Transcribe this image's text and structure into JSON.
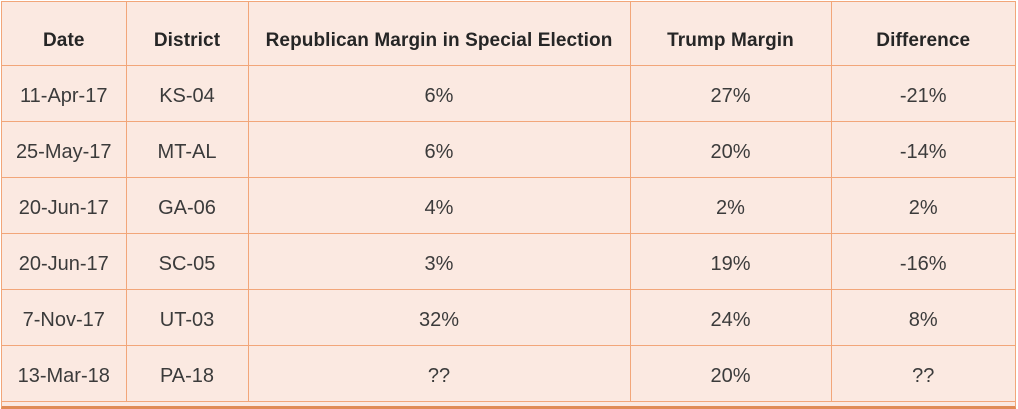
{
  "colors": {
    "cell_bg": "#fbe9e1",
    "border": "#f2a679",
    "border_dark": "#e08b55",
    "text": "#3b3b3b",
    "header_text": "#262626"
  },
  "table": {
    "headers": {
      "date": "Date",
      "district": "District",
      "rep_margin": "Republican Margin in Special Election",
      "trump_margin": "Trump Margin",
      "difference": "Difference"
    },
    "rows": [
      {
        "date": "11-Apr-17",
        "district": "KS-04",
        "rep_margin": "6%",
        "trump_margin": "27%",
        "difference": "-21%"
      },
      {
        "date": "25-May-17",
        "district": "MT-AL",
        "rep_margin": "6%",
        "trump_margin": "20%",
        "difference": "-14%"
      },
      {
        "date": "20-Jun-17",
        "district": "GA-06",
        "rep_margin": "4%",
        "trump_margin": "2%",
        "difference": "2%"
      },
      {
        "date": "20-Jun-17",
        "district": "SC-05",
        "rep_margin": "3%",
        "trump_margin": "19%",
        "difference": "-16%"
      },
      {
        "date": "7-Nov-17",
        "district": "UT-03",
        "rep_margin": "32%",
        "trump_margin": "24%",
        "difference": "8%"
      },
      {
        "date": "13-Mar-18",
        "district": "PA-18",
        "rep_margin": "??",
        "trump_margin": "20%",
        "difference": "??"
      }
    ]
  },
  "chart_data": {
    "type": "table",
    "columns": [
      "Date",
      "District",
      "Republican Margin in Special Election",
      "Trump Margin",
      "Difference"
    ],
    "rows": [
      [
        "11-Apr-17",
        "KS-04",
        "6%",
        "27%",
        "-21%"
      ],
      [
        "25-May-17",
        "MT-AL",
        "6%",
        "20%",
        "-14%"
      ],
      [
        "20-Jun-17",
        "GA-06",
        "4%",
        "2%",
        "2%"
      ],
      [
        "20-Jun-17",
        "SC-05",
        "3%",
        "19%",
        "-16%"
      ],
      [
        "7-Nov-17",
        "UT-03",
        "32%",
        "24%",
        "8%"
      ],
      [
        "13-Mar-18",
        "PA-18",
        "??",
        "20%",
        "??"
      ]
    ]
  }
}
